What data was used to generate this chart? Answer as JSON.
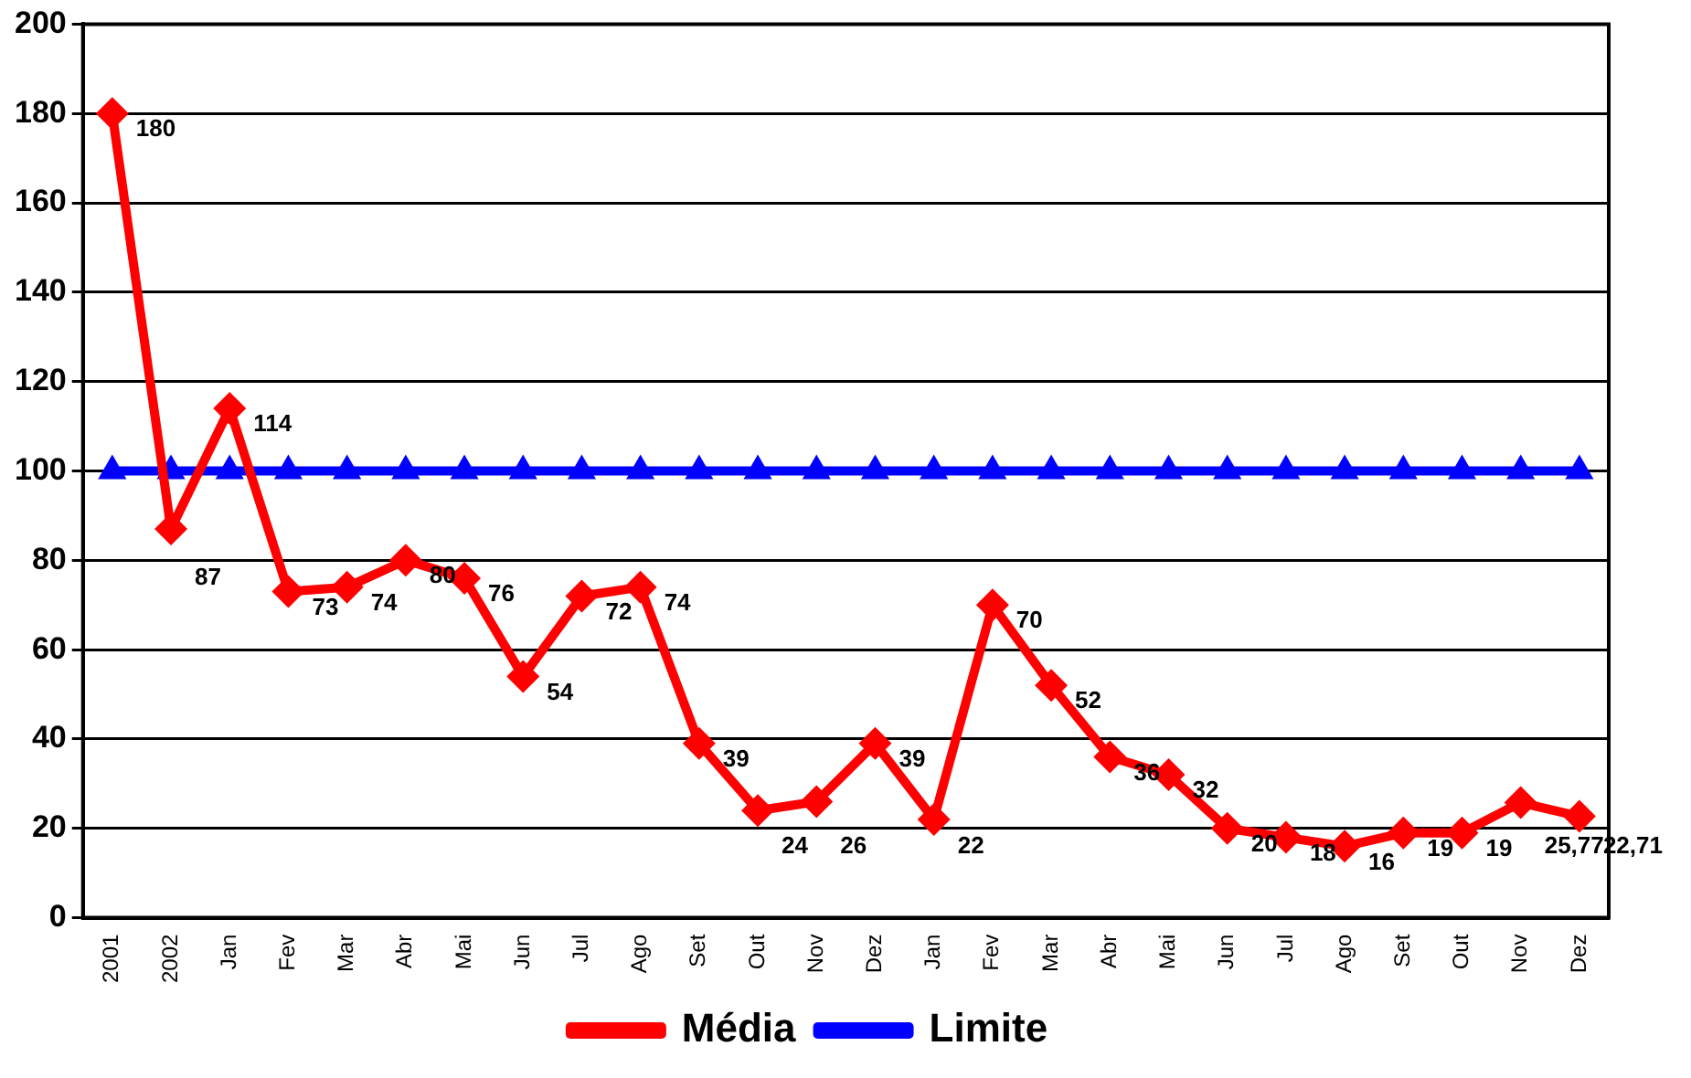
{
  "chart_data": {
    "type": "line",
    "categories": [
      "2001",
      "2002",
      "Jan",
      "Fev",
      "Mar",
      "Abr",
      "Mai",
      "Jun",
      "Jul",
      "Ago",
      "Set",
      "Out",
      "Nov",
      "Dez",
      "Jan",
      "Fev",
      "Mar",
      "Abr",
      "Mai",
      "Jun",
      "Jul",
      "Ago",
      "Set",
      "Out",
      "Nov",
      "Dez"
    ],
    "series": [
      {
        "name": "Média",
        "color": "#ff0000",
        "marker": "diamond",
        "values": [
          180,
          87,
          114,
          73,
          74,
          80,
          76,
          54,
          72,
          74,
          39,
          24,
          26,
          39,
          22,
          70,
          52,
          36,
          32,
          20,
          18,
          16,
          19,
          19,
          25.77,
          22.71
        ],
        "value_labels": [
          "180",
          "87",
          "114",
          "73",
          "74",
          "80",
          "76",
          "54",
          "72",
          "74",
          "39",
          "24",
          "26",
          "39",
          "22",
          "70",
          "52",
          "36",
          "32",
          "20",
          "18",
          "16",
          "19",
          "19",
          "25,77",
          "22,71"
        ]
      },
      {
        "name": "Limite",
        "color": "#0000ff",
        "marker": "triangle",
        "values": [
          100,
          100,
          100,
          100,
          100,
          100,
          100,
          100,
          100,
          100,
          100,
          100,
          100,
          100,
          100,
          100,
          100,
          100,
          100,
          100,
          100,
          100,
          100,
          100,
          100,
          100
        ]
      }
    ],
    "ylim": [
      0,
      200
    ],
    "yticks": [
      0,
      20,
      40,
      60,
      80,
      100,
      120,
      140,
      160,
      180,
      200
    ],
    "grid": "y",
    "legend": "bottom",
    "line_style": "solid"
  }
}
